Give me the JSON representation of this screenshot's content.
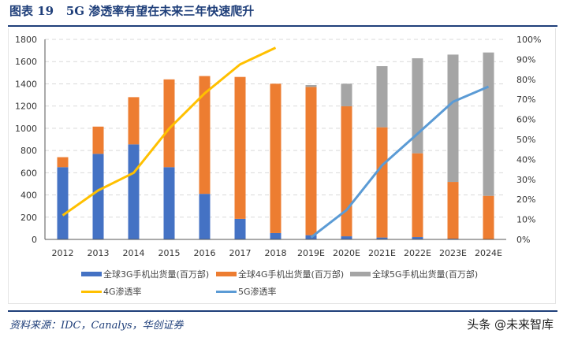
{
  "header": {
    "title": "图表 19   5G 渗透率有望在未来三年快速爬升"
  },
  "footer": {
    "source": "资料来源：IDC，Canalys，华创证券",
    "watermark": "头条 @未来智库"
  },
  "colors": {
    "3g": "#4472c4",
    "4g": "#ed7d31",
    "5g": "#a5a5a5",
    "4g_rate": "#ffc000",
    "5g_rate": "#5b9bd5",
    "title": "#1f3f7a"
  },
  "chart_data": {
    "type": "bar",
    "stacked": true,
    "title": "",
    "categories": [
      "2012",
      "2013",
      "2014",
      "2015",
      "2016",
      "2017",
      "2018",
      "2019E",
      "2020E",
      "2021E",
      "2022E",
      "2023E",
      "2024E"
    ],
    "y_left": {
      "range": [
        0,
        1800
      ],
      "ticks": [
        "0",
        "200",
        "400",
        "600",
        "800",
        "1000",
        "1200",
        "1400",
        "1600",
        "1800"
      ]
    },
    "y_right": {
      "range": [
        0,
        100
      ],
      "ticks": [
        "0%",
        "10%",
        "20%",
        "30%",
        "40%",
        "50%",
        "60%",
        "70%",
        "80%",
        "90%",
        "100%"
      ]
    },
    "grid": "horizontal-dashed",
    "legend_placement": "bottom",
    "series": [
      {
        "name": "全球3G手机出货量(百万部)",
        "kind": "bar",
        "axis": "left",
        "values": [
          650,
          770,
          855,
          650,
          410,
          185,
          57,
          38,
          28,
          17,
          21,
          7,
          0
        ]
      },
      {
        "name": "全球4G手机出货量(百万部)",
        "kind": "bar",
        "axis": "left",
        "values": [
          90,
          245,
          425,
          790,
          1060,
          1277,
          1344,
          1334,
          1170,
          992,
          754,
          510,
          392
        ]
      },
      {
        "name": "全球5G手机出货量(百万部)",
        "kind": "bar",
        "axis": "left",
        "values": [
          0,
          0,
          0,
          0,
          0,
          0,
          0,
          17,
          203,
          550,
          855,
          1146,
          1290
        ]
      },
      {
        "name": "4G渗透率",
        "kind": "line",
        "axis": "right",
        "values": [
          12,
          24.5,
          33.3,
          55.4,
          73,
          87.5,
          95.8,
          null,
          null,
          null,
          null,
          null,
          null
        ]
      },
      {
        "name": "5G渗透率",
        "kind": "line",
        "axis": "right",
        "values": [
          null,
          null,
          null,
          null,
          null,
          null,
          null,
          1,
          14.7,
          37,
          52.8,
          68.8,
          76.4
        ]
      }
    ]
  }
}
